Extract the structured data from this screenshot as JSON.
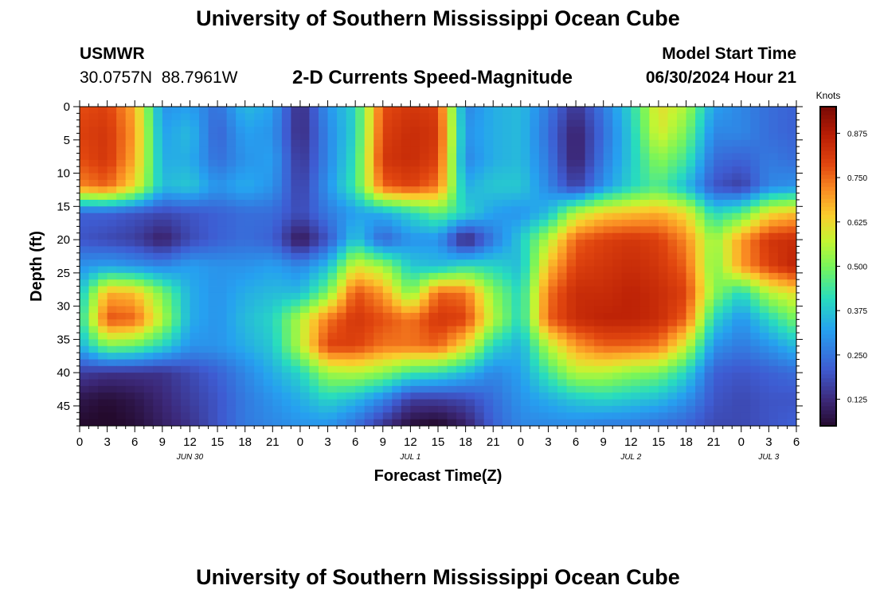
{
  "page": {
    "title": "University of Southern Mississippi Ocean Cube",
    "footer_title": "University of Southern Mississippi Ocean Cube"
  },
  "header": {
    "station_name": "USMWR",
    "coordinates": "30.0757N  88.7961W",
    "subtitle": "2-D Currents Speed-Magnitude",
    "model_start_label": "Model Start Time",
    "model_start_value": "06/30/2024 Hour 21"
  },
  "chart_data": {
    "type": "heatmap",
    "title": "2-D Currents Speed-Magnitude",
    "xlabel": "Forecast Time(Z)",
    "ylabel": "Depth (ft)",
    "x_unit": "hours since JUN 30 00Z",
    "xlim": [
      0,
      78
    ],
    "ylim": [
      0,
      48
    ],
    "x_ticks": [
      0,
      3,
      6,
      9,
      12,
      15,
      18,
      21,
      24,
      27,
      30,
      33,
      36,
      39,
      42,
      45,
      48,
      51,
      54,
      57,
      60,
      63,
      66,
      69,
      72,
      75,
      78
    ],
    "x_tick_labels": [
      "0",
      "3",
      "6",
      "9",
      "12",
      "15",
      "18",
      "21",
      "0",
      "3",
      "6",
      "9",
      "12",
      "15",
      "18",
      "21",
      "0",
      "3",
      "6",
      "9",
      "12",
      "15",
      "18",
      "21",
      "0",
      "3",
      "6"
    ],
    "y_ticks": [
      0,
      5,
      10,
      15,
      20,
      25,
      30,
      35,
      40,
      45
    ],
    "y_tick_labels": [
      "0",
      "5",
      "10",
      "15",
      "20",
      "25",
      "30",
      "35",
      "40",
      "45"
    ],
    "date_labels": [
      {
        "label": "JUN 30",
        "x": 12
      },
      {
        "label": "JUL 1",
        "x": 36
      },
      {
        "label": "JUL 2",
        "x": 60
      },
      {
        "label": "JUL 3",
        "x": 75
      }
    ],
    "colorbar": {
      "label": "Knots",
      "range": [
        0.05,
        0.95
      ],
      "ticks": [
        0.125,
        0.25,
        0.375,
        0.5,
        0.625,
        0.75,
        0.875
      ],
      "tick_labels": [
        "0.125",
        "0.250",
        "0.375",
        "0.500",
        "0.625",
        "0.750",
        "0.875"
      ]
    },
    "speed_field": {
      "depths_ft": [
        0,
        4,
        8,
        12,
        16,
        20,
        24,
        28,
        32,
        36,
        40,
        44,
        48
      ],
      "times_h": [
        0,
        3,
        6,
        9,
        12,
        15,
        18,
        21,
        24,
        27,
        30,
        33,
        36,
        39,
        42,
        45,
        48,
        51,
        54,
        57,
        60,
        63,
        66,
        69,
        72,
        75,
        78
      ],
      "values_knots": [
        [
          0.78,
          0.8,
          0.68,
          0.3,
          0.32,
          0.24,
          0.36,
          0.32,
          0.12,
          0.3,
          0.4,
          0.78,
          0.82,
          0.8,
          0.28,
          0.34,
          0.36,
          0.26,
          0.14,
          0.26,
          0.4,
          0.62,
          0.55,
          0.32,
          0.28,
          0.24,
          0.22
        ],
        [
          0.8,
          0.82,
          0.7,
          0.32,
          0.36,
          0.22,
          0.32,
          0.3,
          0.12,
          0.28,
          0.4,
          0.8,
          0.84,
          0.82,
          0.3,
          0.34,
          0.36,
          0.24,
          0.1,
          0.24,
          0.38,
          0.6,
          0.5,
          0.28,
          0.28,
          0.24,
          0.22
        ],
        [
          0.78,
          0.82,
          0.68,
          0.34,
          0.34,
          0.24,
          0.3,
          0.32,
          0.14,
          0.28,
          0.42,
          0.82,
          0.84,
          0.8,
          0.28,
          0.34,
          0.36,
          0.26,
          0.1,
          0.26,
          0.38,
          0.52,
          0.44,
          0.24,
          0.22,
          0.26,
          0.24
        ],
        [
          0.72,
          0.76,
          0.62,
          0.36,
          0.38,
          0.3,
          0.34,
          0.3,
          0.16,
          0.3,
          0.44,
          0.76,
          0.8,
          0.74,
          0.34,
          0.38,
          0.38,
          0.28,
          0.16,
          0.3,
          0.4,
          0.46,
          0.36,
          0.2,
          0.16,
          0.28,
          0.3
        ],
        [
          0.22,
          0.22,
          0.2,
          0.18,
          0.2,
          0.22,
          0.24,
          0.24,
          0.18,
          0.26,
          0.32,
          0.34,
          0.4,
          0.48,
          0.4,
          0.32,
          0.3,
          0.36,
          0.56,
          0.64,
          0.66,
          0.68,
          0.62,
          0.4,
          0.46,
          0.62,
          0.66
        ],
        [
          0.2,
          0.18,
          0.16,
          0.1,
          0.18,
          0.22,
          0.24,
          0.22,
          0.08,
          0.2,
          0.38,
          0.22,
          0.3,
          0.3,
          0.1,
          0.26,
          0.38,
          0.56,
          0.76,
          0.8,
          0.82,
          0.8,
          0.72,
          0.52,
          0.7,
          0.82,
          0.84
        ],
        [
          0.3,
          0.32,
          0.3,
          0.28,
          0.32,
          0.3,
          0.3,
          0.32,
          0.28,
          0.36,
          0.6,
          0.54,
          0.38,
          0.36,
          0.42,
          0.4,
          0.36,
          0.66,
          0.8,
          0.82,
          0.84,
          0.82,
          0.76,
          0.5,
          0.7,
          0.8,
          0.86
        ],
        [
          0.36,
          0.68,
          0.66,
          0.5,
          0.34,
          0.3,
          0.34,
          0.36,
          0.36,
          0.5,
          0.78,
          0.7,
          0.5,
          0.76,
          0.74,
          0.52,
          0.4,
          0.74,
          0.84,
          0.84,
          0.86,
          0.84,
          0.8,
          0.52,
          0.4,
          0.56,
          0.62
        ],
        [
          0.4,
          0.78,
          0.76,
          0.56,
          0.34,
          0.3,
          0.36,
          0.4,
          0.56,
          0.74,
          0.82,
          0.78,
          0.74,
          0.82,
          0.8,
          0.56,
          0.4,
          0.76,
          0.84,
          0.86,
          0.86,
          0.84,
          0.76,
          0.4,
          0.3,
          0.4,
          0.5
        ],
        [
          0.34,
          0.5,
          0.48,
          0.4,
          0.3,
          0.3,
          0.34,
          0.38,
          0.56,
          0.8,
          0.8,
          0.74,
          0.74,
          0.76,
          0.62,
          0.4,
          0.34,
          0.56,
          0.7,
          0.76,
          0.76,
          0.74,
          0.58,
          0.3,
          0.26,
          0.3,
          0.36
        ],
        [
          0.16,
          0.14,
          0.14,
          0.14,
          0.18,
          0.22,
          0.28,
          0.34,
          0.4,
          0.54,
          0.56,
          0.52,
          0.44,
          0.42,
          0.36,
          0.28,
          0.32,
          0.44,
          0.56,
          0.56,
          0.52,
          0.5,
          0.4,
          0.22,
          0.2,
          0.22,
          0.24
        ],
        [
          0.08,
          0.06,
          0.08,
          0.12,
          0.16,
          0.2,
          0.26,
          0.3,
          0.34,
          0.4,
          0.36,
          0.28,
          0.16,
          0.16,
          0.18,
          0.24,
          0.3,
          0.34,
          0.38,
          0.4,
          0.38,
          0.36,
          0.3,
          0.2,
          0.18,
          0.2,
          0.2
        ],
        [
          0.05,
          0.04,
          0.06,
          0.1,
          0.14,
          0.2,
          0.26,
          0.28,
          0.3,
          0.3,
          0.24,
          0.14,
          0.06,
          0.04,
          0.1,
          0.22,
          0.28,
          0.28,
          0.28,
          0.26,
          0.26,
          0.24,
          0.22,
          0.18,
          0.18,
          0.2,
          0.22
        ]
      ]
    }
  }
}
